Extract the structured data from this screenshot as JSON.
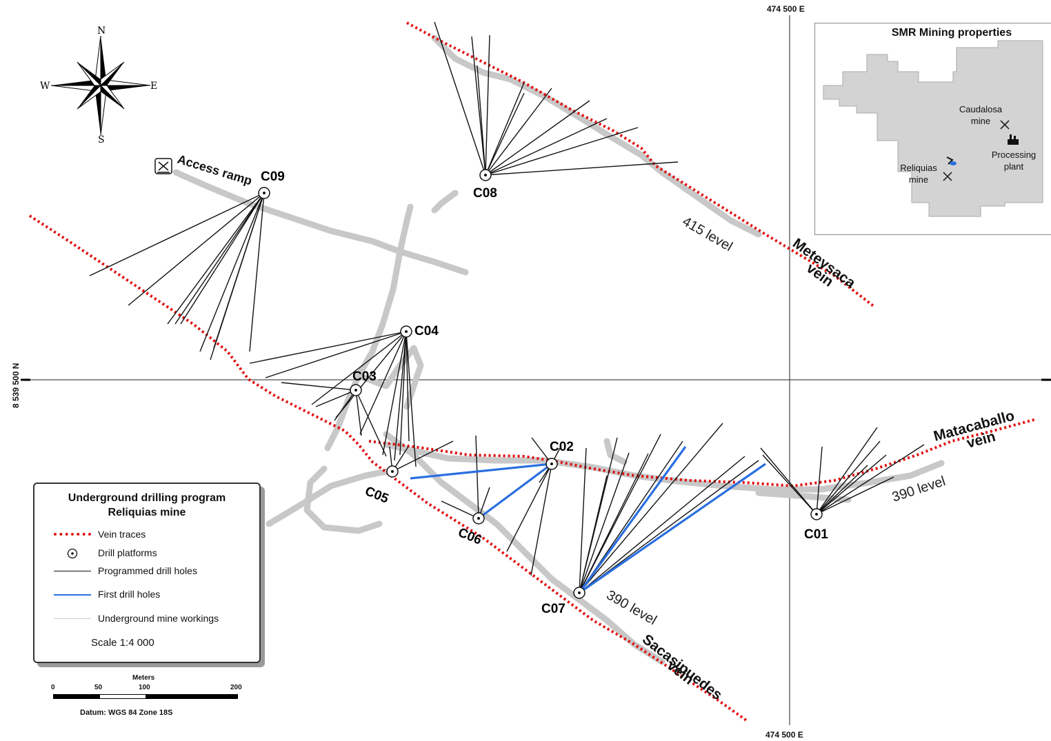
{
  "coordinates": {
    "easting_top": "474 500 E",
    "easting_bottom": "474 500 E",
    "northing": "8 539 500 N"
  },
  "compass": {
    "n": "N",
    "s": "S",
    "e": "E",
    "w": "W"
  },
  "platforms": [
    "C01",
    "C02",
    "C03",
    "C04",
    "C05",
    "C06",
    "C07",
    "C08",
    "C09"
  ],
  "veins": {
    "meteysaca": [
      "Meteysaca",
      "vein"
    ],
    "matacaballo": [
      "Matacaballo",
      "vein"
    ],
    "sacasipuedes": [
      "Sacasipuedes",
      "vein"
    ]
  },
  "levels": {
    "upper": "415 level",
    "east": "390 level",
    "south": "390 level"
  },
  "access_ramp": "Access ramp",
  "legend": {
    "title_line1": "Underground drilling program",
    "title_line2": "Reliquias mine",
    "items": [
      "Vein traces",
      "Drill platforms",
      "Programmed drill holes",
      "First drill holes",
      "Underground mine workings"
    ],
    "scale": "Scale    1:4 000"
  },
  "scalebar": {
    "unit": "Meters",
    "ticks": [
      "0",
      "50",
      "100",
      "200"
    ],
    "datum": "Datum: WGS 84 Zone 18S"
  },
  "inset": {
    "title": "SMR Mining properties",
    "caudalosa": [
      "Caudalosa",
      "mine"
    ],
    "reliquias": [
      "Reliquias",
      "mine"
    ],
    "plant": [
      "Processing",
      "plant"
    ]
  },
  "colors": {
    "vein": "#e01010",
    "programmed": "#111111",
    "first": "#2a6fe0",
    "workings": "#c8c8c8",
    "property": "#d3d3d3"
  }
}
